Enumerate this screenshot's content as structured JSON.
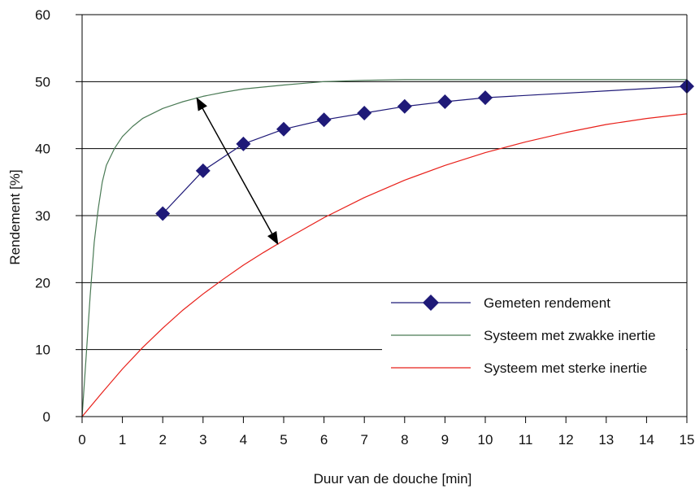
{
  "chart_data": {
    "type": "line",
    "xlabel": "Duur van de douche [min]",
    "ylabel": "Rendement [%]",
    "xlim": [
      0,
      15
    ],
    "ylim": [
      0,
      60
    ],
    "x_ticks": [
      "0",
      "1",
      "2",
      "3",
      "4",
      "5",
      "6",
      "7",
      "8",
      "9",
      "10",
      "11",
      "12",
      "13",
      "14",
      "15"
    ],
    "y_ticks": [
      "0",
      "10",
      "20",
      "30",
      "40",
      "50",
      "60"
    ],
    "grid": "horizontal",
    "legend_position": "bottom-right",
    "series": [
      {
        "name": "Gemeten rendement",
        "color": "#1f1a78",
        "marker": "diamond",
        "x": [
          2,
          3,
          4,
          5,
          6,
          7,
          8,
          9,
          10,
          15
        ],
        "y": [
          30.3,
          36.7,
          40.7,
          42.9,
          44.3,
          45.3,
          46.3,
          47.0,
          47.6,
          49.3
        ]
      },
      {
        "name": "Systeem met zwakke inertie",
        "color": "#4a7a55",
        "marker": "none",
        "x": [
          0,
          0.1,
          0.2,
          0.3,
          0.4,
          0.5,
          0.6,
          0.8,
          1,
          1.25,
          1.5,
          2,
          2.5,
          3,
          3.5,
          4,
          5,
          6,
          7,
          8,
          9,
          10,
          12,
          15
        ],
        "y": [
          0,
          9,
          18,
          26,
          31,
          35,
          37.5,
          40,
          41.8,
          43.3,
          44.5,
          46,
          47,
          47.8,
          48.4,
          48.9,
          49.5,
          50,
          50.2,
          50.3,
          50.3,
          50.3,
          50.3,
          50.3
        ]
      },
      {
        "name": "Systeem met sterke inertie",
        "color": "#e8201a",
        "marker": "none",
        "x": [
          0,
          0.5,
          1,
          1.5,
          2,
          2.5,
          3,
          3.5,
          4,
          4.5,
          5,
          5.5,
          6,
          7,
          8,
          9,
          10,
          11,
          12,
          13,
          14,
          15
        ],
        "y": [
          0,
          3.6,
          7.1,
          10.3,
          13.2,
          15.9,
          18.3,
          20.5,
          22.6,
          24.5,
          26.3,
          28,
          29.7,
          32.7,
          35.3,
          37.5,
          39.4,
          41,
          42.4,
          43.6,
          44.5,
          45.2
        ]
      }
    ],
    "annotations": [
      {
        "type": "double-arrow",
        "from": [
          2.85,
          47.5
        ],
        "to": [
          4.85,
          25.8
        ]
      }
    ]
  }
}
